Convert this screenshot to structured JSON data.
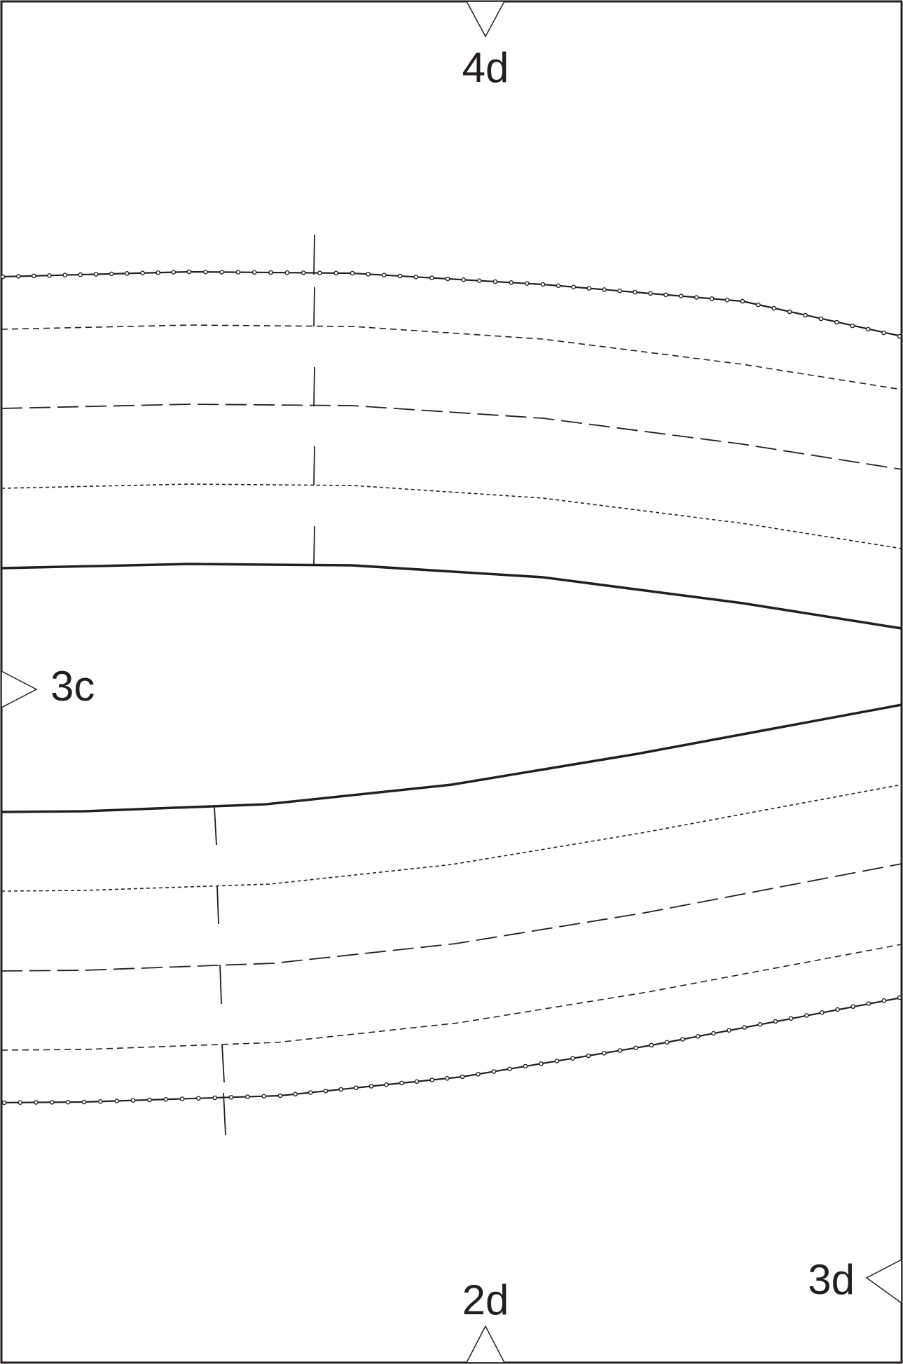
{
  "labels": {
    "top_notch": "4d",
    "left_notch": "3c",
    "bottom_notch": "2d",
    "right_notch": "3d"
  }
}
